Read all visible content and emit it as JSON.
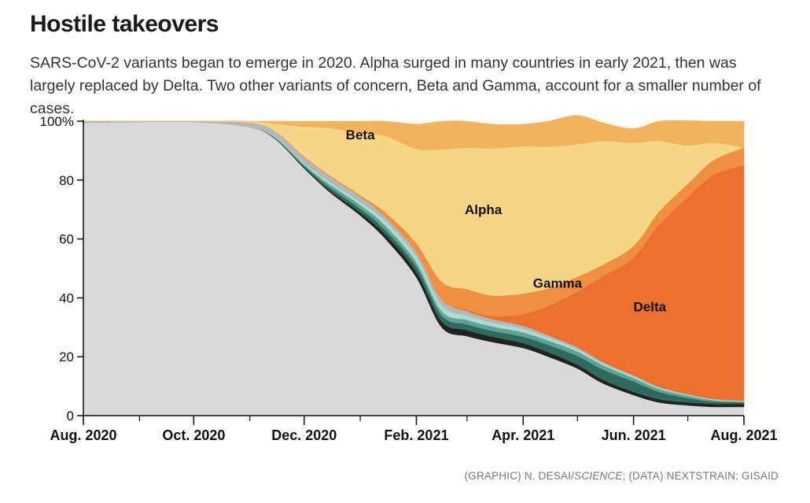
{
  "header": {
    "title": "Hostile takeovers",
    "subtitle": "SARS-CoV-2 variants began to emerge in 2020. Alpha surged in many countries in early 2021, then was largely replaced by Delta. Two other variants of concern, Beta and Gamma, account for a smaller number of cases."
  },
  "credit": {
    "prefix": "(GRAPHIC) N. DESAI/",
    "publication": "SCIENCE",
    "suffix": "; (DATA) NEXTSTRAIN; GISAID"
  },
  "chart_data": {
    "type": "area",
    "stacked": true,
    "x": [
      "2020-08-01",
      "2020-09-01",
      "2020-10-01",
      "2020-11-01",
      "2020-11-15",
      "2020-12-01",
      "2020-12-15",
      "2021-01-01",
      "2021-01-15",
      "2021-02-01",
      "2021-02-15",
      "2021-03-01",
      "2021-03-15",
      "2021-04-01",
      "2021-04-15",
      "2021-05-01",
      "2021-05-15",
      "2021-06-01",
      "2021-06-15",
      "2021-07-01",
      "2021-07-15",
      "2021-08-01"
    ],
    "ylim": [
      0,
      100
    ],
    "yticks": [
      0,
      20,
      40,
      60,
      80,
      100
    ],
    "ytick_labels": [
      "0",
      "20",
      "40",
      "60",
      "80",
      "100%"
    ],
    "xticks": [
      "Aug. 2020",
      "Oct. 2020",
      "Dec. 2020",
      "Feb. 2021",
      "Apr. 2021",
      "Jun. 2021",
      "Aug. 2021"
    ],
    "series": [
      {
        "name": "",
        "color": "#d9d9d9",
        "values": [
          99.5,
          99.8,
          99.8,
          98,
          94,
          84,
          76,
          68,
          60,
          47,
          30,
          27,
          25,
          23,
          20,
          16,
          11,
          7,
          4.5,
          3.5,
          3,
          3
        ]
      },
      {
        "name": "",
        "color": "#222222",
        "values": [
          0,
          0,
          0,
          0,
          0.1,
          0.3,
          0.6,
          1,
          1.5,
          1.8,
          2,
          2,
          1.8,
          1.6,
          1.5,
          1.3,
          1.2,
          1.1,
          1.1,
          1,
          1,
          1
        ]
      },
      {
        "name": "",
        "color": "#2e6b5e",
        "values": [
          0,
          0,
          0,
          0,
          0.2,
          0.5,
          1,
          1.3,
          1.5,
          1.8,
          2,
          2,
          2,
          2.2,
          2.5,
          3,
          3.5,
          3.5,
          2.5,
          1.5,
          0.8,
          0.5
        ]
      },
      {
        "name": "",
        "color": "#5ea394",
        "values": [
          0,
          0,
          0,
          0,
          0.2,
          0.5,
          1,
          1.3,
          1.5,
          1.5,
          1.5,
          1.5,
          1.5,
          1.5,
          1.5,
          1.5,
          1.5,
          1.2,
          1,
          0.8,
          0.5,
          0.3
        ]
      },
      {
        "name": "",
        "color": "#a9dcd0",
        "values": [
          0,
          0,
          0,
          0,
          0.2,
          0.4,
          0.8,
          1,
          1.5,
          2,
          2,
          1.5,
          1.3,
          1.2,
          1,
          0.8,
          0.6,
          0.5,
          0.4,
          0.3,
          0.2,
          0.2
        ]
      },
      {
        "name": "",
        "color": "#b7b7b7",
        "values": [
          0.5,
          0.2,
          0.2,
          1.5,
          2,
          2.2,
          2,
          1.8,
          1.5,
          1.5,
          2,
          1.5,
          1.2,
          1,
          0.8,
          0.6,
          0.5,
          0.4,
          0.3,
          0.2,
          0.2,
          0.1
        ]
      },
      {
        "name": "Delta",
        "color": "#ec7030",
        "values": [
          0,
          0,
          0,
          0,
          0,
          0,
          0,
          0,
          0,
          0,
          0,
          0.5,
          1,
          4,
          10,
          19,
          29,
          40,
          55,
          67,
          76,
          80
        ]
      },
      {
        "name": "Gamma",
        "color": "#ef9040",
        "values": [
          0,
          0,
          0,
          0,
          0,
          0.2,
          0.3,
          0.5,
          1.5,
          3,
          6,
          7,
          7,
          7,
          6,
          5,
          4,
          4,
          4.5,
          4.5,
          5,
          6
        ]
      },
      {
        "name": "Alpha",
        "color": "#f7d587",
        "values": [
          0,
          0,
          0,
          0.5,
          2.5,
          10,
          16,
          21,
          26,
          32,
          45,
          48,
          50,
          50,
          48,
          45,
          42,
          35,
          24,
          13,
          6,
          0
        ]
      },
      {
        "name": "Beta",
        "color": "#f2b35e",
        "values": [
          0,
          0,
          0,
          0,
          0.8,
          1.9,
          2.3,
          4.1,
          5,
          8.4,
          9.5,
          9,
          8.2,
          7.5,
          8.7,
          9.8,
          6.2,
          4.8,
          6.7,
          8.4,
          7.3,
          8.9
        ]
      }
    ],
    "annotations": [
      {
        "text": "Beta",
        "x": "2021-01-01",
        "y": 95.5
      },
      {
        "text": "Alpha",
        "x": "2021-03-10",
        "y": 70
      },
      {
        "text": "Gamma",
        "x": "2021-04-20",
        "y": 45
      },
      {
        "text": "Delta",
        "x": "2021-06-10",
        "y": 37
      }
    ]
  }
}
